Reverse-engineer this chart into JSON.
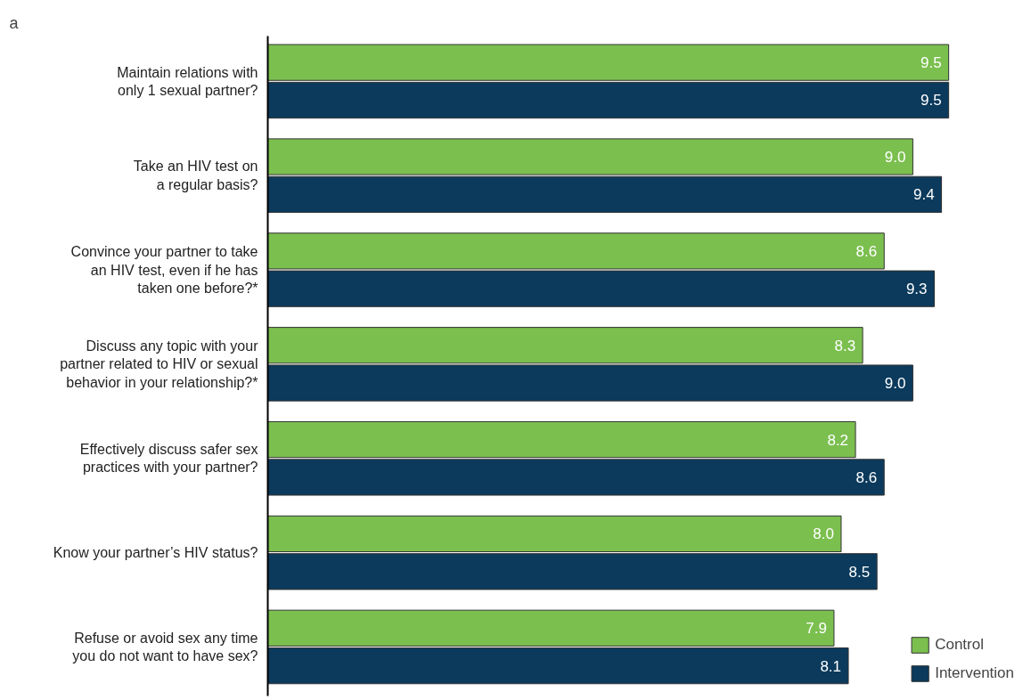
{
  "chart_data": {
    "type": "bar",
    "orientation": "horizontal",
    "categories": [
      "Maintain relations with\nonly 1 sexual partner?",
      "Take an HIV test on\na regular basis?",
      "Convince your partner to take\nan HIV test, even if he has\ntaken one before?*",
      "Discuss any topic with your\npartner related to HIV or sexual\nbehavior in your relationship?*",
      "Effectively discuss safer sex\npractices with your partner?",
      "Know your partner’s HIV status?",
      "Refuse or avoid sex any time\nyou do not want to have sex?"
    ],
    "series": [
      {
        "name": "Control",
        "color": "#7bbf4f",
        "values": [
          9.5,
          9.0,
          8.6,
          8.3,
          8.2,
          8.0,
          7.9
        ],
        "value_labels": [
          "9.5",
          "9.0",
          "8.6",
          "8.3",
          "8.2",
          "8.0",
          "7.9"
        ]
      },
      {
        "name": "Intervention",
        "color": "#0b3a5c",
        "values": [
          9.5,
          9.4,
          9.3,
          9.0,
          8.6,
          8.5,
          8.1
        ],
        "value_labels": [
          "9.5",
          "9.4",
          "9.3",
          "9.0",
          "8.6",
          "8.5",
          "8.1"
        ]
      }
    ],
    "legend": "bottom right",
    "grid": false,
    "tick_labels": "y",
    "annotations": [
      "a"
    ]
  }
}
